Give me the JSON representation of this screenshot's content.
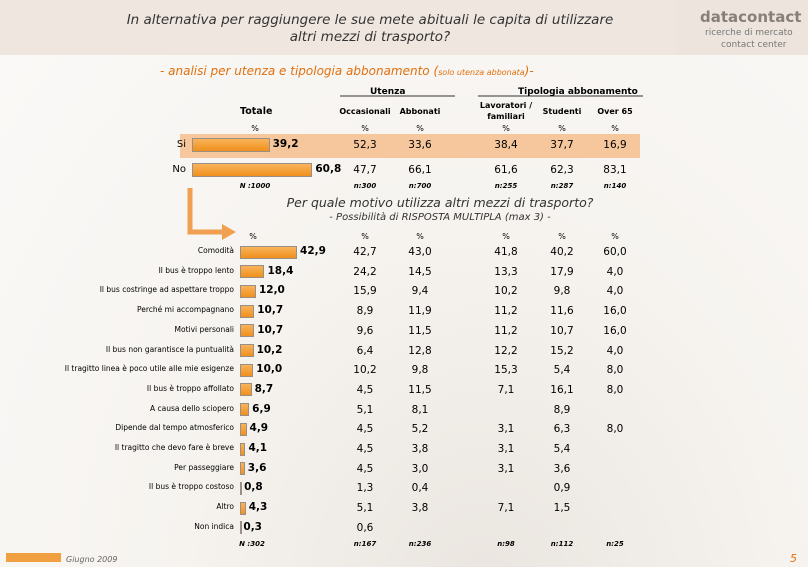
{
  "header": {
    "title_lines": [
      "In alternativa per raggiungere le sue mete abituali le capita di utilizzare",
      "altri mezzi di trasporto?"
    ],
    "logo": {
      "brand": "datacontact",
      "line1": "ricerche di mercato",
      "line2": "contact center"
    }
  },
  "subtitle": {
    "prefix": "- analisi per utenza e tipologia abbonamento (",
    "note": "solo utenza abbonata",
    "suffix": ")-"
  },
  "groups": {
    "utenza": "Utenza",
    "tipologia": "Tipologia abbonamento"
  },
  "columns": [
    "Occasionali",
    "Abbonati",
    "Lavoratori / familiari",
    "Studenti",
    "Over 65"
  ],
  "total_label": "Totale",
  "percent": "%",
  "q1": {
    "rows": [
      {
        "label": "Si",
        "total": 39.2,
        "total_label": "39,2",
        "cells": [
          "52,3",
          "33,6",
          "38,4",
          "37,7",
          "16,9"
        ]
      },
      {
        "label": "No",
        "total": 60.8,
        "total_label": "60,8",
        "cells": [
          "47,7",
          "66,1",
          "61,6",
          "62,3",
          "83,1"
        ]
      }
    ],
    "n": {
      "total": "N :1000",
      "cells": [
        "n:300",
        "n:700",
        "n:255",
        "n:287",
        "n:140"
      ]
    }
  },
  "q2": {
    "title": "Per quale motivo utilizza altri mezzi di trasporto?",
    "note": "- Possibilità di RISPOSTA MULTIPLA (max 3) -",
    "rows": [
      {
        "label": "Comodità",
        "total": 42.9,
        "total_label": "42,9",
        "cells": [
          "42,7",
          "43,0",
          "41,8",
          "40,2",
          "60,0"
        ]
      },
      {
        "label": "Il bus è troppo lento",
        "total": 18.4,
        "total_label": "18,4",
        "cells": [
          "24,2",
          "14,5",
          "13,3",
          "17,9",
          "4,0"
        ]
      },
      {
        "label": "Il bus costringe ad aspettare troppo",
        "total": 12.0,
        "total_label": "12,0",
        "cells": [
          "15,9",
          "9,4",
          "10,2",
          "9,8",
          "4,0"
        ]
      },
      {
        "label": "Perché mi accompagnano",
        "total": 10.7,
        "total_label": "10,7",
        "cells": [
          "8,9",
          "11,9",
          "11,2",
          "11,6",
          "16,0"
        ]
      },
      {
        "label": "Motivi personali",
        "total": 10.7,
        "total_label": "10,7",
        "cells": [
          "9,6",
          "11,5",
          "11,2",
          "10,7",
          "16,0"
        ]
      },
      {
        "label": "Il bus non garantisce la puntualità",
        "total": 10.2,
        "total_label": "10,2",
        "cells": [
          "6,4",
          "12,8",
          "12,2",
          "15,2",
          "4,0"
        ]
      },
      {
        "label": "Il tragitto linea è poco utile alle mie esigenze",
        "total": 10.0,
        "total_label": "10,0",
        "cells": [
          "10,2",
          "9,8",
          "15,3",
          "5,4",
          "8,0"
        ]
      },
      {
        "label": "Il bus è troppo affollato",
        "total": 8.7,
        "total_label": "8,7",
        "cells": [
          "4,5",
          "11,5",
          "7,1",
          "16,1",
          "8,0"
        ]
      },
      {
        "label": "A causa dello sciopero",
        "total": 6.9,
        "total_label": "6,9",
        "cells": [
          "5,1",
          "8,1",
          null,
          "8,9",
          null
        ]
      },
      {
        "label": "Dipende dal tempo atmosferico",
        "total": 4.9,
        "total_label": "4,9",
        "cells": [
          "4,5",
          "5,2",
          "3,1",
          "6,3",
          "8,0"
        ]
      },
      {
        "label": "Il tragitto che devo fare è breve",
        "total": 4.1,
        "total_label": "4,1",
        "cells": [
          "4,5",
          "3,8",
          "3,1",
          "5,4",
          null
        ]
      },
      {
        "label": "Per passeggiare",
        "total": 3.6,
        "total_label": "3,6",
        "cells": [
          "4,5",
          "3,0",
          "3,1",
          "3,6",
          null
        ]
      },
      {
        "label": "Il bus è troppo costoso",
        "total": 0.8,
        "total_label": "0,8",
        "cells": [
          "1,3",
          "0,4",
          null,
          "0,9",
          null
        ]
      },
      {
        "label": "Altro",
        "total": 4.3,
        "total_label": "4,3",
        "cells": [
          "5,1",
          "3,8",
          "7,1",
          "1,5",
          null
        ]
      },
      {
        "label": "Non indica",
        "total": 0.3,
        "total_label": "0,3",
        "cells": [
          "0,6",
          null,
          null,
          null,
          null
        ]
      }
    ],
    "n": {
      "total": "N :302",
      "cells": [
        "n:167",
        "n:236",
        "n:98",
        "n:112",
        "n:25"
      ]
    }
  },
  "footer": {
    "date": "Giugno 2009",
    "page": "5"
  }
}
